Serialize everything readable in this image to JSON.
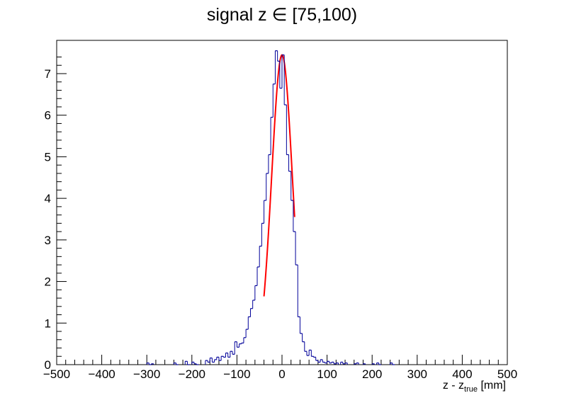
{
  "chart_data": {
    "type": "histogram",
    "title": "signal z ∈ [75,100)",
    "xlabel": {
      "main": "z - z",
      "subscript": "true",
      "unit": "[mm]"
    },
    "ylabel": "",
    "xlim": [
      -500,
      500
    ],
    "ylim": [
      0,
      7.8
    ],
    "x_ticks": [
      -500,
      -400,
      -300,
      -200,
      -100,
      0,
      100,
      200,
      300,
      400,
      500
    ],
    "x_tick_labels": [
      "−500",
      "−400",
      "−300",
      "−200",
      "−100",
      "0",
      "100",
      "200",
      "300",
      "400",
      "500"
    ],
    "y_ticks": [
      0,
      1,
      2,
      3,
      4,
      5,
      6,
      7
    ],
    "y_tick_labels": [
      "0",
      "1",
      "2",
      "3",
      "4",
      "5",
      "6",
      "7"
    ],
    "grid": false,
    "colors": {
      "histogram": "#000099",
      "fit": "#ff0000"
    },
    "bin_width": 5,
    "bins": [
      [
        -300,
        0.04
      ],
      [
        -295,
        0.0
      ],
      [
        -290,
        0.02
      ],
      [
        -240,
        0.04
      ],
      [
        -235,
        0.0
      ],
      [
        -215,
        0.08
      ],
      [
        -210,
        0.0
      ],
      [
        -200,
        0.06
      ],
      [
        -195,
        0.02
      ],
      [
        -190,
        0.0
      ],
      [
        -170,
        0.1
      ],
      [
        -165,
        0.06
      ],
      [
        -160,
        0.16
      ],
      [
        -155,
        0.06
      ],
      [
        -150,
        0.12
      ],
      [
        -145,
        0.18
      ],
      [
        -140,
        0.1
      ],
      [
        -135,
        0.2
      ],
      [
        -130,
        0.18
      ],
      [
        -125,
        0.28
      ],
      [
        -120,
        0.18
      ],
      [
        -115,
        0.32
      ],
      [
        -110,
        0.25
      ],
      [
        -105,
        0.55
      ],
      [
        -100,
        0.42
      ],
      [
        -95,
        0.5
      ],
      [
        -90,
        0.52
      ],
      [
        -85,
        0.65
      ],
      [
        -80,
        0.85
      ],
      [
        -75,
        1.15
      ],
      [
        -70,
        1.35
      ],
      [
        -65,
        1.55
      ],
      [
        -60,
        1.9
      ],
      [
        -55,
        2.35
      ],
      [
        -50,
        2.85
      ],
      [
        -45,
        3.4
      ],
      [
        -40,
        3.95
      ],
      [
        -35,
        4.6
      ],
      [
        -30,
        5.05
      ],
      [
        -25,
        5.95
      ],
      [
        -20,
        6.75
      ],
      [
        -15,
        7.55
      ],
      [
        -10,
        7.3
      ],
      [
        -5,
        6.65
      ],
      [
        0,
        7.45
      ],
      [
        5,
        6.25
      ],
      [
        10,
        5.05
      ],
      [
        15,
        4.65
      ],
      [
        20,
        3.95
      ],
      [
        25,
        3.2
      ],
      [
        30,
        2.4
      ],
      [
        35,
        1.15
      ],
      [
        40,
        0.75
      ],
      [
        45,
        0.55
      ],
      [
        50,
        0.32
      ],
      [
        55,
        0.22
      ],
      [
        60,
        0.35
      ],
      [
        65,
        0.2
      ],
      [
        70,
        0.18
      ],
      [
        75,
        0.1
      ],
      [
        80,
        0.06
      ],
      [
        85,
        0.12
      ],
      [
        90,
        0.06
      ],
      [
        95,
        0.04
      ],
      [
        100,
        0.08
      ],
      [
        105,
        0.04
      ],
      [
        110,
        0.06
      ],
      [
        115,
        0.02
      ],
      [
        120,
        0.04
      ],
      [
        130,
        0.06
      ],
      [
        135,
        0.02
      ],
      [
        140,
        0.04
      ],
      [
        160,
        0.02
      ],
      [
        165,
        0.04
      ],
      [
        180,
        0.02
      ],
      [
        200,
        0.02
      ],
      [
        210,
        0.04
      ],
      [
        215,
        0.0
      ],
      [
        240,
        0.04
      ],
      [
        245,
        0.0
      ]
    ],
    "fit": {
      "function": "gaussian",
      "amplitude": 7.45,
      "mean": 0,
      "sigma": 23,
      "range": [
        -40,
        28
      ]
    }
  }
}
